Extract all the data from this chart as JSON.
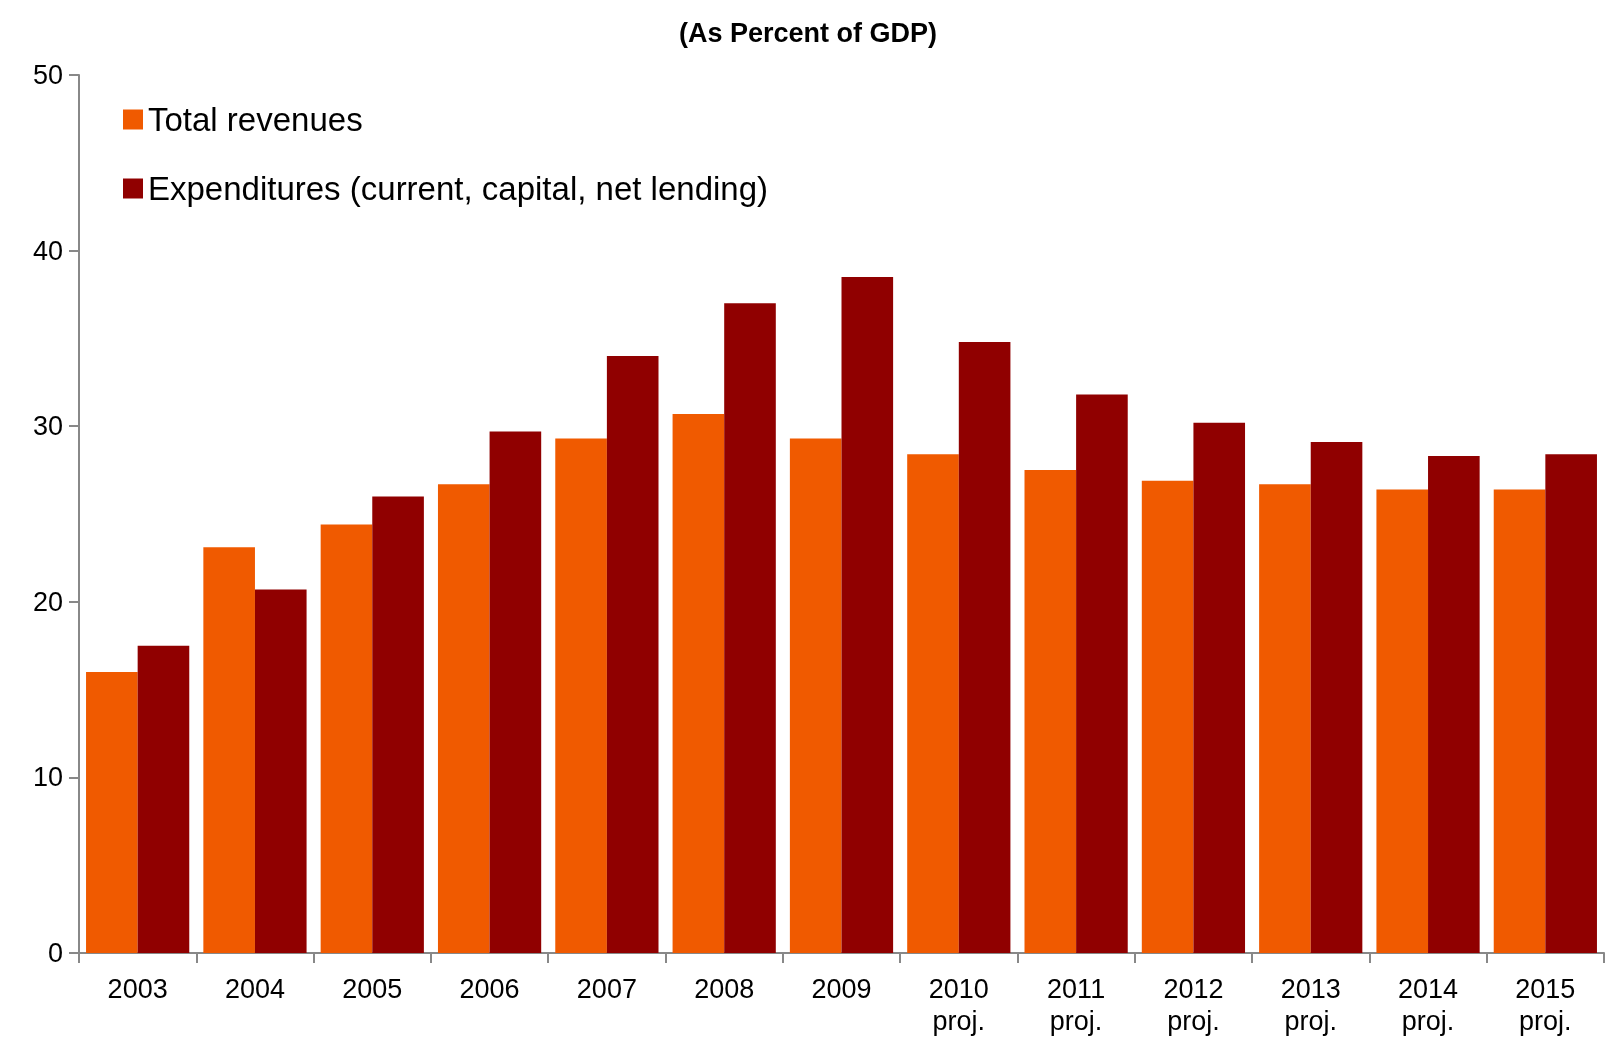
{
  "chart_data": {
    "type": "bar",
    "title": "(As Percent of GDP)",
    "categories": [
      "2003",
      "2004",
      "2005",
      "2006",
      "2007",
      "2008",
      "2009",
      "2010\nproj.",
      "2011\nproj.",
      "2012\nproj.",
      "2013\nproj.",
      "2014\nproj.",
      "2015\nproj."
    ],
    "series": [
      {
        "name": "Total revenues",
        "color": "#f05a00",
        "values": [
          16.0,
          23.1,
          24.4,
          26.7,
          29.3,
          30.7,
          29.3,
          28.4,
          27.5,
          26.9,
          26.7,
          26.4,
          26.4
        ]
      },
      {
        "name": "Expenditures (current, capital, net lending)",
        "color": "#900000",
        "values": [
          17.5,
          20.7,
          26.0,
          29.7,
          34.0,
          37.0,
          38.5,
          34.8,
          31.8,
          30.2,
          29.1,
          28.3,
          28.4
        ]
      }
    ],
    "ylim": [
      0,
      50
    ],
    "yticks": [
      0,
      10,
      20,
      30,
      40,
      50
    ],
    "grid": false,
    "legend": "top left"
  }
}
